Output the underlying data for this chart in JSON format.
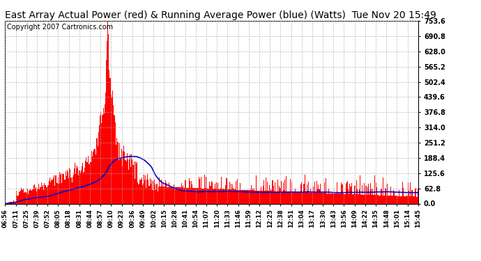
{
  "title": "East Array Actual Power (red) & Running Average Power (blue) (Watts)  Tue Nov 20 15:49",
  "copyright": "Copyright 2007 Cartronics.com",
  "ylabel_right_ticks": [
    0.0,
    62.8,
    125.6,
    188.4,
    251.2,
    314.0,
    376.8,
    439.6,
    502.4,
    565.2,
    628.0,
    690.8,
    753.6
  ],
  "ymax": 753.6,
  "ymin": 0.0,
  "bar_color": "#FF0000",
  "avg_color": "#0000CC",
  "background_color": "#FFFFFF",
  "grid_color": "#AAAAAA",
  "title_font_size": 10,
  "copyright_font_size": 7,
  "x_tick_labels": [
    "06:56",
    "07:11",
    "07:25",
    "07:39",
    "07:52",
    "08:05",
    "08:18",
    "08:31",
    "08:44",
    "08:57",
    "09:10",
    "09:23",
    "09:36",
    "09:49",
    "10:02",
    "10:15",
    "10:28",
    "10:41",
    "10:54",
    "11:07",
    "11:20",
    "11:33",
    "11:46",
    "11:59",
    "12:12",
    "12:25",
    "12:38",
    "12:51",
    "13:04",
    "13:17",
    "13:30",
    "13:43",
    "13:56",
    "14:09",
    "14:22",
    "14:35",
    "14:48",
    "15:01",
    "15:14",
    "15:45"
  ]
}
